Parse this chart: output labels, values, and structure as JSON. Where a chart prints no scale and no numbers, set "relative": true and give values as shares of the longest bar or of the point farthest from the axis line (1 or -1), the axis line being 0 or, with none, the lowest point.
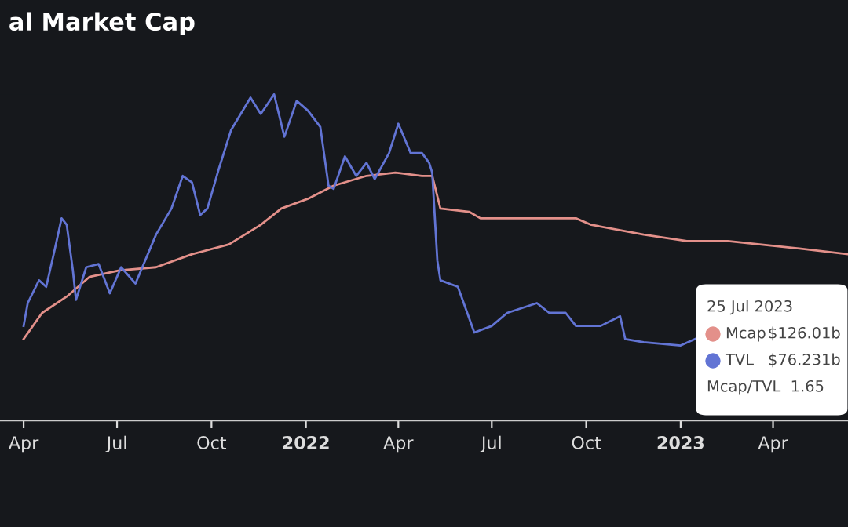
{
  "chart_data": {
    "type": "line",
    "title": "al Market Cap",
    "relative": true,
    "xlim": [
      "2021-03-09",
      "2023-06-13"
    ],
    "xticks": [
      {
        "value": "2021-04-01",
        "label": "Apr"
      },
      {
        "value": "2021-07-01",
        "label": "Jul"
      },
      {
        "value": "2021-10-01",
        "label": "Oct"
      },
      {
        "value": "2022-01-01",
        "label": "2022"
      },
      {
        "value": "2022-04-01",
        "label": "Apr"
      },
      {
        "value": "2022-07-01",
        "label": "Jul"
      },
      {
        "value": "2022-10-01",
        "label": "Oct"
      },
      {
        "value": "2023-01-01",
        "label": "2023"
      },
      {
        "value": "2023-04-01",
        "label": "Apr"
      }
    ],
    "series": [
      {
        "name": "Mcap",
        "color": "#e3908a",
        "x": [
          "2021-04-01",
          "2021-04-19",
          "2021-05-13",
          "2021-06-04",
          "2021-07-03",
          "2021-08-08",
          "2021-09-12",
          "2021-10-18",
          "2021-11-18",
          "2021-12-08",
          "2022-01-03",
          "2022-01-28",
          "2022-03-01",
          "2022-03-29",
          "2022-04-24",
          "2022-05-04",
          "2022-05-12",
          "2022-06-09",
          "2022-06-20",
          "2022-09-21",
          "2022-10-06",
          "2022-11-26",
          "2023-01-07",
          "2023-02-16",
          "2023-04-19",
          "2023-06-13"
        ],
        "values": [
          0.25,
          0.33,
          0.38,
          0.44,
          0.46,
          0.47,
          0.51,
          0.54,
          0.6,
          0.65,
          0.68,
          0.72,
          0.75,
          0.76,
          0.75,
          0.75,
          0.65,
          0.64,
          0.62,
          0.62,
          0.6,
          0.57,
          0.55,
          0.55,
          0.53,
          0.51
        ]
      },
      {
        "name": "TVL",
        "color": "#6274d4",
        "x": [
          "2021-04-01",
          "2021-04-05",
          "2021-04-16",
          "2021-04-23",
          "2021-05-01",
          "2021-05-08",
          "2021-05-13",
          "2021-05-19",
          "2021-05-22",
          "2021-06-01",
          "2021-06-13",
          "2021-06-24",
          "2021-07-05",
          "2021-07-19",
          "2021-08-08",
          "2021-08-23",
          "2021-09-03",
          "2021-09-12",
          "2021-09-20",
          "2021-09-27",
          "2021-10-08",
          "2021-10-20",
          "2021-11-08",
          "2021-11-18",
          "2021-12-01",
          "2021-12-11",
          "2021-12-23",
          "2022-01-03",
          "2022-01-15",
          "2022-01-23",
          "2022-01-28",
          "2022-02-08",
          "2022-02-19",
          "2022-03-01",
          "2022-03-09",
          "2022-03-23",
          "2022-04-01",
          "2022-04-13",
          "2022-04-24",
          "2022-05-01",
          "2022-05-04",
          "2022-05-09",
          "2022-05-12",
          "2022-05-29",
          "2022-06-14",
          "2022-07-01",
          "2022-07-16",
          "2022-08-14",
          "2022-08-26",
          "2022-09-11",
          "2022-09-21",
          "2022-10-15",
          "2022-11-03",
          "2022-11-08",
          "2022-11-26",
          "2023-01-01",
          "2023-01-15"
        ],
        "values": [
          0.29,
          0.36,
          0.43,
          0.41,
          0.52,
          0.62,
          0.6,
          0.46,
          0.37,
          0.47,
          0.48,
          0.39,
          0.47,
          0.42,
          0.57,
          0.65,
          0.75,
          0.73,
          0.63,
          0.65,
          0.77,
          0.89,
          0.99,
          0.94,
          1,
          0.87,
          0.98,
          0.95,
          0.9,
          0.72,
          0.71,
          0.81,
          0.75,
          0.79,
          0.74,
          0.82,
          0.91,
          0.82,
          0.82,
          0.79,
          0.76,
          0.49,
          0.43,
          0.41,
          0.27,
          0.29,
          0.33,
          0.36,
          0.33,
          0.33,
          0.29,
          0.29,
          0.32,
          0.25,
          0.24,
          0.23,
          0.25
        ]
      }
    ],
    "legend": "bottom right",
    "legend_title": "25 Jul 2023",
    "annotations": [
      "$126.01b",
      "$76.231b",
      "Mcap/TVL  1.65"
    ]
  }
}
